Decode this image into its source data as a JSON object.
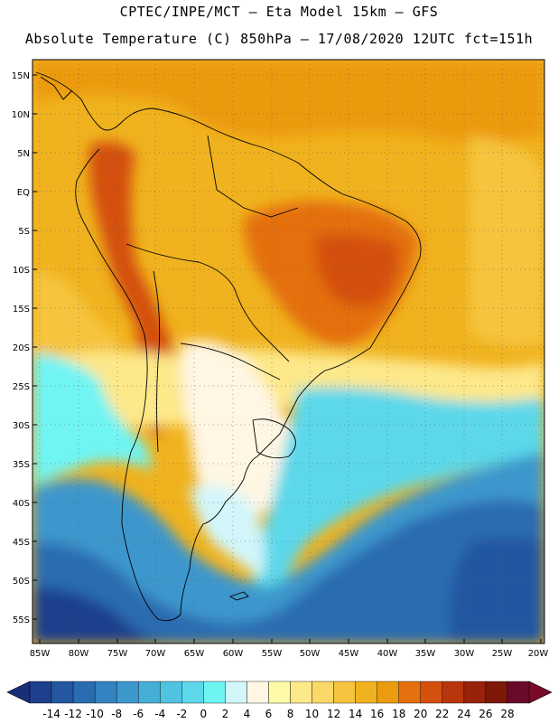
{
  "title_line1": "CPTEC/INPE/MCT –  Eta Model 15km – GFS",
  "title_line2": "Absolute Temperature (C) 850hPa – 17/08/2020 12UTC fct=151h",
  "lat_labels": [
    "15N",
    "10N",
    "5N",
    "EQ",
    "5S",
    "10S",
    "15S",
    "20S",
    "25S",
    "30S",
    "35S",
    "40S",
    "45S",
    "50S",
    "55S"
  ],
  "lon_labels": [
    "85W",
    "80W",
    "75W",
    "70W",
    "65W",
    "60W",
    "55W",
    "50W",
    "45W",
    "40W",
    "35W",
    "30W",
    "25W",
    "20W"
  ],
  "colorbar": {
    "labels": [
      "-14",
      "-12",
      "-10",
      "-8",
      "-6",
      "-4",
      "-2",
      "0",
      "2",
      "4",
      "6",
      "8",
      "10",
      "12",
      "14",
      "16",
      "18",
      "20",
      "22",
      "24",
      "26",
      "28"
    ],
    "colors": [
      "#1e3f8c",
      "#2457a0",
      "#2a6cb0",
      "#3483c0",
      "#3c97cc",
      "#45aed6",
      "#4fc3e0",
      "#5cd8ea",
      "#6ff4f4",
      "#d2f6fa",
      "#fff6e4",
      "#fdfaa8",
      "#fde88a",
      "#fbd868",
      "#f6c43e",
      "#f0b21e",
      "#ec9a10",
      "#e4700e",
      "#d4500e",
      "#b8360c",
      "#98220a",
      "#7e1808",
      "#6a0a2a"
    ],
    "low_color": "#1a2f7a",
    "high_color": "#7a0a28"
  }
}
